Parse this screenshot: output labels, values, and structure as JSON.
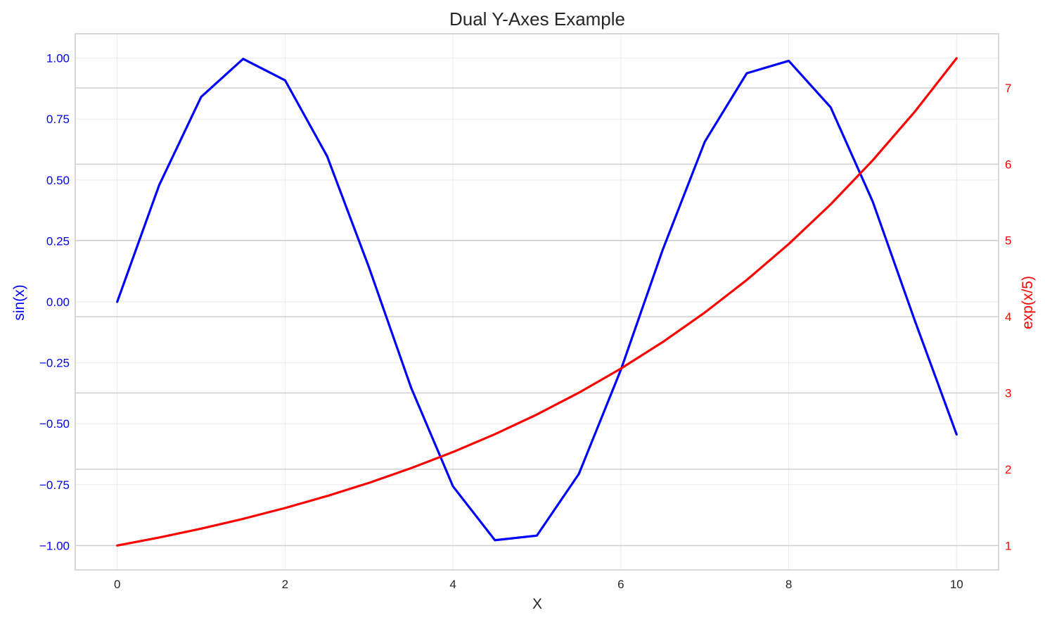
{
  "chart_data": {
    "type": "line",
    "title": "Dual Y-Axes Example",
    "xlabel": "X",
    "xlim": [
      -0.5,
      10.5
    ],
    "x_ticks": [
      0,
      2,
      4,
      6,
      8,
      10
    ],
    "x_tick_labels": [
      "0",
      "2",
      "4",
      "6",
      "8",
      "10"
    ],
    "grid": true,
    "left_axis": {
      "label": "sin(x)",
      "color": "#0000ff",
      "ylim": [
        -1.1,
        1.1
      ],
      "ticks": [
        1.0,
        0.75,
        0.5,
        0.25,
        0.0,
        -0.25,
        -0.5,
        -0.75,
        -1.0
      ],
      "tick_labels": [
        "1.00",
        "0.75",
        "0.50",
        "0.25",
        "0.00",
        "−0.25",
        "−0.50",
        "−0.75",
        "−1.00"
      ]
    },
    "right_axis": {
      "label": "exp(x/5)",
      "color": "#ff0000",
      "ylim": [
        0.68,
        7.71
      ],
      "ticks": [
        1,
        2,
        3,
        4,
        5,
        6,
        7
      ],
      "tick_labels": [
        "1",
        "2",
        "3",
        "4",
        "5",
        "6",
        "7"
      ]
    },
    "x": [
      0,
      0.5,
      1,
      1.5,
      2,
      2.5,
      3,
      3.5,
      4,
      4.5,
      5,
      5.5,
      6,
      6.5,
      7,
      7.5,
      8,
      8.5,
      9,
      9.5,
      10
    ],
    "series": [
      {
        "axis": "left",
        "color": "#0000ff",
        "values": [
          0.0,
          0.479,
          0.841,
          0.997,
          0.909,
          0.598,
          0.141,
          -0.351,
          -0.757,
          -0.978,
          -0.959,
          -0.706,
          -0.279,
          0.215,
          0.657,
          0.938,
          0.989,
          0.798,
          0.412,
          -0.075,
          -0.544
        ]
      },
      {
        "axis": "right",
        "color": "#ff0000",
        "values": [
          1.0,
          1.105,
          1.221,
          1.35,
          1.492,
          1.649,
          1.822,
          2.014,
          2.226,
          2.46,
          2.718,
          3.004,
          3.32,
          3.669,
          4.055,
          4.482,
          4.953,
          5.474,
          6.05,
          6.686,
          7.389
        ]
      }
    ]
  }
}
